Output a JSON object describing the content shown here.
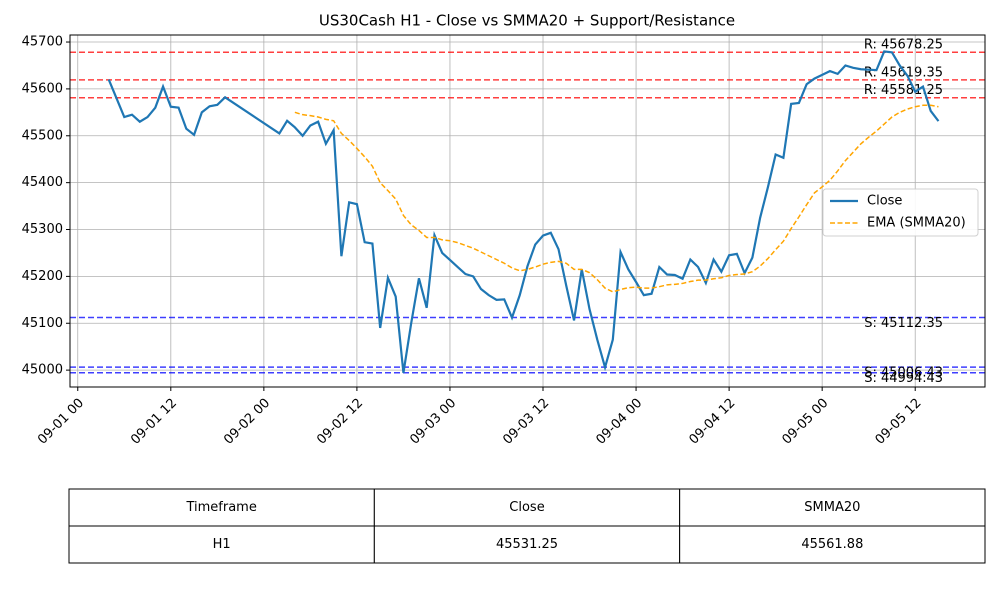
{
  "chart_data": {
    "type": "line",
    "title": "US30Cash H1 - Close vs SMMA20 + Support/Resistance",
    "x": [
      "09-01 04",
      "09-01 05",
      "09-01 06",
      "09-01 07",
      "09-01 08",
      "09-01 09",
      "09-01 10",
      "09-01 11",
      "09-01 12",
      "09-01 13",
      "09-01 14",
      "09-01 15",
      "09-01 16",
      "09-01 17",
      "09-01 18",
      "09-01 19",
      "09-02 02",
      "09-02 03",
      "09-02 04",
      "09-02 05",
      "09-02 06",
      "09-02 07",
      "09-02 08",
      "09-02 09",
      "09-02 10",
      "09-02 11",
      "09-02 12",
      "09-02 13",
      "09-02 14",
      "09-02 15",
      "09-02 16",
      "09-02 17",
      "09-02 18",
      "09-02 19",
      "09-02 20",
      "09-02 21",
      "09-02 22",
      "09-02 23",
      "09-03 00",
      "09-03 01",
      "09-03 02",
      "09-03 03",
      "09-03 04",
      "09-03 05",
      "09-03 06",
      "09-03 07",
      "09-03 08",
      "09-03 09",
      "09-03 10",
      "09-03 11",
      "09-03 12",
      "09-03 13",
      "09-03 14",
      "09-03 15",
      "09-03 16",
      "09-03 17",
      "09-03 18",
      "09-03 19",
      "09-03 20",
      "09-03 21",
      "09-03 22",
      "09-03 23",
      "09-04 00",
      "09-04 01",
      "09-04 02",
      "09-04 03",
      "09-04 04",
      "09-04 05",
      "09-04 06",
      "09-04 07",
      "09-04 08",
      "09-04 09",
      "09-04 10",
      "09-04 11",
      "09-04 12",
      "09-04 13",
      "09-04 14",
      "09-04 15",
      "09-04 16",
      "09-04 17",
      "09-04 18",
      "09-04 19",
      "09-04 20",
      "09-04 21",
      "09-04 22",
      "09-04 23",
      "09-05 00",
      "09-05 01",
      "09-05 02",
      "09-05 03",
      "09-05 04",
      "09-05 05",
      "09-05 06",
      "09-05 07",
      "09-05 08",
      "09-05 09",
      "09-05 10",
      "09-05 11",
      "09-05 12",
      "09-05 13",
      "09-05 14",
      "09-05 15"
    ],
    "series": [
      {
        "name": "Close",
        "color": "#1f77b4",
        "dash": false,
        "values": [
          45620,
          45580,
          45540,
          45545,
          45530,
          45540,
          45560,
          45605,
          45562,
          45560,
          45515,
          45502,
          45550,
          45563,
          45566,
          45582,
          45505,
          45532,
          45518,
          45500,
          45522,
          45530,
          45483,
          45512,
          45243,
          45358,
          45354,
          45273,
          45270,
          45090,
          45197,
          45157,
          44994,
          45100,
          45196,
          45133,
          45288,
          45250,
          45235,
          45220,
          45205,
          45200,
          45173,
          45160,
          45150,
          45151,
          45112,
          45160,
          45222,
          45268,
          45287,
          45293,
          45258,
          45180,
          45106,
          45215,
          45130,
          45065,
          45006,
          45065,
          45252,
          45215,
          45188,
          45160,
          45163,
          45220,
          45204,
          45203,
          45195,
          45236,
          45220,
          45186,
          45236,
          45210,
          45245,
          45248,
          45207,
          45240,
          45325,
          45390,
          45460,
          45453,
          45568,
          45570,
          45610,
          45622,
          45630,
          45638,
          45632,
          45650,
          45645,
          45642,
          45641,
          45640,
          45680,
          45678,
          45650,
          45628,
          45594,
          45605,
          45553,
          45531.25
        ]
      },
      {
        "name": "EMA (SMMA20)",
        "color": "#ffa500",
        "dash": true,
        "values": [
          null,
          null,
          null,
          null,
          null,
          null,
          null,
          null,
          null,
          null,
          null,
          null,
          null,
          null,
          null,
          null,
          null,
          null,
          45550,
          45545,
          45543,
          45540,
          45535,
          45532,
          45505,
          45490,
          45473,
          45455,
          45435,
          45400,
          45383,
          45365,
          45330,
          45310,
          45298,
          45283,
          45283,
          45278,
          45276,
          45272,
          45266,
          45260,
          45252,
          45244,
          45236,
          45228,
          45218,
          45212,
          45215,
          45220,
          45226,
          45230,
          45232,
          45228,
          45215,
          45215,
          45208,
          45193,
          45175,
          45167,
          45172,
          45176,
          45177,
          45175,
          45175,
          45178,
          45182,
          45183,
          45185,
          45189,
          45192,
          45192,
          45195,
          45197,
          45202,
          45204,
          45205,
          45210,
          45222,
          45238,
          45257,
          45275,
          45302,
          45327,
          45353,
          45378,
          45391,
          45405,
          45425,
          45447,
          45465,
          45483,
          45497,
          45510,
          45525,
          45540,
          45550,
          45557,
          45562,
          45565,
          45565,
          45561.88
        ]
      }
    ],
    "levels": [
      {
        "value": 45678.25,
        "label": "R: 45678.25",
        "color": "#ff0000"
      },
      {
        "value": 45619.35,
        "label": "R: 45619.35",
        "color": "#ff0000"
      },
      {
        "value": 45581.25,
        "label": "R: 45581.25",
        "color": "#ff0000"
      },
      {
        "value": 45112.35,
        "label": "S: 45112.35",
        "color": "#0000ff"
      },
      {
        "value": 45006.43,
        "label": "S: 45006.43",
        "color": "#0000ff"
      },
      {
        "value": 44994.43,
        "label": "S: 44994.43",
        "color": "#0000ff"
      }
    ],
    "xlim": [
      "08-31 23",
      "09-05 21"
    ],
    "xticks": [
      "09-01 00",
      "09-01 12",
      "09-02 00",
      "09-02 12",
      "09-03 00",
      "09-03 12",
      "09-04 00",
      "09-04 12",
      "09-05 00",
      "09-05 12"
    ],
    "ylim": [
      44964,
      45715
    ],
    "yticks": [
      45000,
      45100,
      45200,
      45300,
      45400,
      45500,
      45600,
      45700
    ],
    "grid": true,
    "legend": "right"
  },
  "table": {
    "header": [
      "Timeframe",
      "Close",
      "SMMA20"
    ],
    "rows": [
      [
        "H1",
        "45531.25",
        "45561.88"
      ]
    ]
  }
}
